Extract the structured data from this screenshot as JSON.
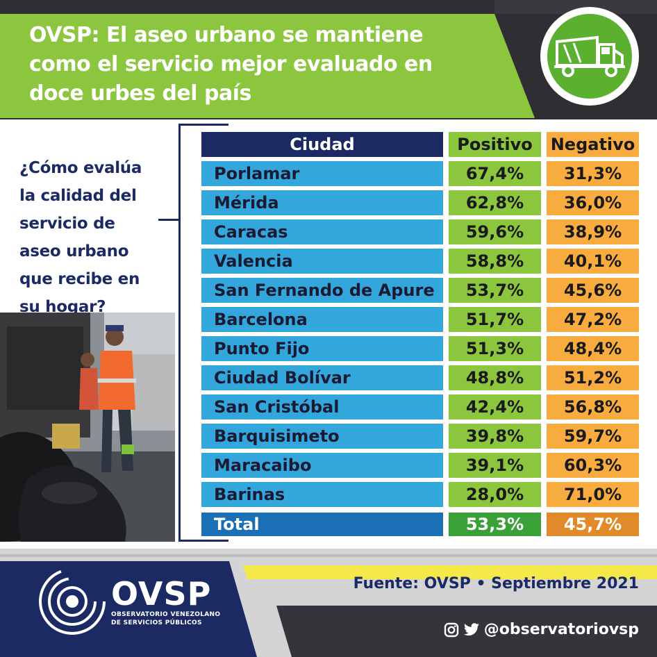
{
  "header": {
    "title_lines": [
      "OVSP: El aseo urbano se mantiene",
      "como el servicio mejor evaluado en",
      "doce urbes del país"
    ]
  },
  "question_lines": [
    "¿Cómo evalúa",
    "la calidad del",
    "servicio de",
    "aseo urbano",
    "que recibe en",
    "su hogar?"
  ],
  "chart_data": {
    "type": "table",
    "columns": [
      "Ciudad",
      "Positivo",
      "Negativo"
    ],
    "rows": [
      {
        "city": "Porlamar",
        "positivo": "67,4%",
        "negativo": "31,3%"
      },
      {
        "city": "Mérida",
        "positivo": "62,8%",
        "negativo": "36,0%"
      },
      {
        "city": "Caracas",
        "positivo": "59,6%",
        "negativo": "38,9%"
      },
      {
        "city": "Valencia",
        "positivo": "58,8%",
        "negativo": "40,1%"
      },
      {
        "city": "San Fernando de Apure",
        "positivo": "53,7%",
        "negativo": "45,6%"
      },
      {
        "city": "Barcelona",
        "positivo": "51,7%",
        "negativo": "47,2%"
      },
      {
        "city": "Punto Fijo",
        "positivo": "51,3%",
        "negativo": "48,4%"
      },
      {
        "city": "Ciudad Bolívar",
        "positivo": "48,8%",
        "negativo": "51,2%"
      },
      {
        "city": "San Cristóbal",
        "positivo": "42,4%",
        "negativo": "56,8%"
      },
      {
        "city": "Barquisimeto",
        "positivo": "39,8%",
        "negativo": "59,7%"
      },
      {
        "city": "Maracaibo",
        "positivo": "39,1%",
        "negativo": "60,3%"
      },
      {
        "city": "Barinas",
        "positivo": "28,0%",
        "negativo": "71,0%"
      }
    ],
    "total": {
      "label": "Total",
      "positivo": "53,3%",
      "negativo": "45,7%"
    }
  },
  "footer": {
    "source": "Fuente: OVSP • Septiembre 2021",
    "handle": "@observatoriovsp",
    "logo_word": "OVSP",
    "logo_sub1": "OBSERVATORIO VENEZOLANO",
    "logo_sub2": "DE SERVICIOS PÚBLICOS"
  },
  "colors": {
    "header_green": "#8cc63f",
    "navy": "#1b2a63",
    "city_blue": "#33a6dc",
    "positive_green": "#8cc63f",
    "negative_orange": "#f8ac40"
  },
  "icons": [
    "garbage-truck-icon",
    "instagram-icon",
    "twitter-icon",
    "ovsp-logo-icon"
  ]
}
